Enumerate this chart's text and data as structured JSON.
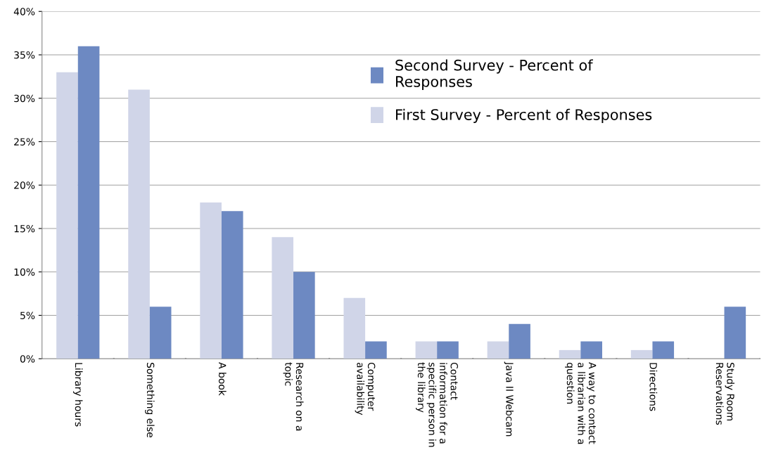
{
  "chart_data": {
    "type": "bar",
    "categories": [
      "Library hours",
      "Something else",
      "A book",
      "Research on a\ntopic",
      "Computer\navailability",
      "Contact\ninformation for a\nspecific person in\nthe library",
      "Java II Webcam",
      "A way to contact\na librarian with a\nquestion",
      "Directions",
      "Study Room\nReservations"
    ],
    "series": [
      {
        "name": "First Survey - Percent of Responses",
        "color": "#d0d5e8",
        "values": [
          33,
          31,
          18,
          14,
          7,
          2,
          2,
          1,
          1,
          0
        ]
      },
      {
        "name": "Second Survey - Percent of\nResponses",
        "color": "#6d89c2",
        "values": [
          36,
          6,
          17,
          10,
          2,
          2,
          4,
          2,
          2,
          6
        ]
      }
    ],
    "ylim": [
      0,
      40
    ],
    "yticks": [
      {
        "value": 0,
        "label": "0%"
      },
      {
        "value": 5,
        "label": "5%"
      },
      {
        "value": 10,
        "label": "10%"
      },
      {
        "value": 15,
        "label": "15%"
      },
      {
        "value": 20,
        "label": "20%"
      },
      {
        "value": 25,
        "label": "25%"
      },
      {
        "value": 30,
        "label": "30%"
      },
      {
        "value": 35,
        "label": "35%"
      },
      {
        "value": 40,
        "label": "40%"
      }
    ],
    "grid": "y",
    "legend": "top right"
  }
}
